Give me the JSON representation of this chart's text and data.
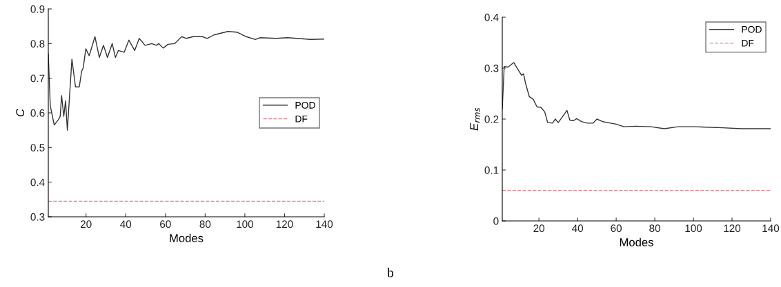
{
  "chart_data": [
    {
      "type": "line",
      "xlabel": "Modes",
      "ylabel": "C",
      "xlim": [
        1,
        140
      ],
      "xticks": [
        20,
        40,
        60,
        80,
        100,
        120,
        140
      ],
      "ylim": [
        0.3,
        0.9
      ],
      "yticks": [
        0.3,
        0.4,
        0.5,
        0.6,
        0.7,
        0.8,
        0.9
      ],
      "legend": "right",
      "grid": false,
      "series": [
        {
          "name": "POD",
          "color": "#333333",
          "line_style": "solid",
          "x": [
            1,
            2,
            4,
            6,
            7,
            7.7,
            8.8,
            9.7,
            10.6,
            12.9,
            14.7,
            16.6,
            17.8,
            18.6,
            19.9,
            21.6,
            24.5,
            26.7,
            28.8,
            30.8,
            33.2,
            34.8,
            36.3,
            39.2,
            41.6,
            44.5,
            46.8,
            49.7,
            53.1,
            55.5,
            56.6,
            58.9,
            61.3,
            64.7,
            68.2,
            70.5,
            74,
            78.6,
            81,
            84.4,
            91.4,
            96,
            100.7,
            105.3,
            107.6,
            115.7,
            121.5,
            133,
            140
          ],
          "values": [
            0.77,
            0.62,
            0.565,
            0.58,
            0.59,
            0.65,
            0.59,
            0.635,
            0.55,
            0.755,
            0.675,
            0.675,
            0.72,
            0.73,
            0.785,
            0.765,
            0.82,
            0.76,
            0.795,
            0.76,
            0.8,
            0.76,
            0.78,
            0.775,
            0.81,
            0.78,
            0.815,
            0.795,
            0.8,
            0.795,
            0.8,
            0.787,
            0.798,
            0.8,
            0.82,
            0.815,
            0.82,
            0.82,
            0.815,
            0.825,
            0.835,
            0.833,
            0.82,
            0.812,
            0.817,
            0.815,
            0.817,
            0.812,
            0.813
          ]
        },
        {
          "name": "DF",
          "color": "#d9848a",
          "line_style": "dashed",
          "x": [
            1,
            140
          ],
          "values": [
            0.345,
            0.345
          ]
        }
      ]
    },
    {
      "type": "line",
      "xlabel": "Modes",
      "ylabel": "E$_{rms}$",
      "xlim": [
        1,
        140
      ],
      "xticks": [
        20,
        40,
        60,
        80,
        100,
        120,
        140
      ],
      "ylim": [
        0,
        0.4
      ],
      "yticks": [
        0,
        0.1,
        0.2,
        0.3,
        0.4
      ],
      "legend": "top right",
      "grid": false,
      "annotations": [
        "b"
      ],
      "series": [
        {
          "name": "POD",
          "color": "#333333",
          "line_style": "solid",
          "x": [
            1,
            2,
            4,
            6,
            7,
            9,
            11,
            12,
            13,
            15,
            17,
            19,
            21,
            23,
            24.5,
            27,
            28.5,
            30,
            33,
            34.5,
            36,
            38,
            39.5,
            42,
            45,
            48,
            50,
            53,
            57,
            60,
            64,
            70,
            78,
            85,
            92,
            100,
            115,
            125,
            140
          ],
          "values": [
            0.22,
            0.303,
            0.302,
            0.308,
            0.311,
            0.298,
            0.286,
            0.289,
            0.271,
            0.244,
            0.239,
            0.224,
            0.223,
            0.214,
            0.193,
            0.192,
            0.2,
            0.193,
            0.209,
            0.217,
            0.198,
            0.197,
            0.201,
            0.195,
            0.192,
            0.192,
            0.2,
            0.195,
            0.192,
            0.19,
            0.185,
            0.186,
            0.185,
            0.181,
            0.185,
            0.185,
            0.183,
            0.181,
            0.181
          ]
        },
        {
          "name": "DF",
          "color": "#d9848a",
          "line_style": "dashed",
          "x": [
            1,
            140
          ],
          "values": [
            0.06,
            0.06
          ]
        }
      ]
    }
  ]
}
